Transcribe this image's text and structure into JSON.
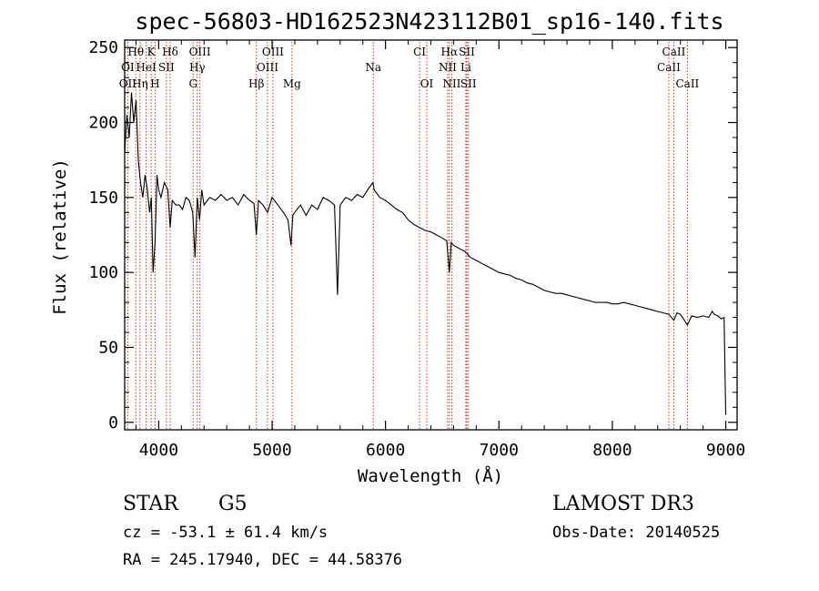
{
  "chart_data": {
    "type": "line",
    "title": "spec-56803-HD162523N423112B01_sp16-140.fits",
    "xlabel": "Wavelength (Å)",
    "ylabel": "Flux (relative)",
    "xlim": [
      3700,
      9100
    ],
    "ylim": [
      -5,
      255
    ],
    "xticks": [
      4000,
      5000,
      6000,
      7000,
      8000,
      9000
    ],
    "yticks": [
      0,
      50,
      100,
      150,
      200,
      250
    ],
    "series": [
      {
        "name": "flux",
        "x": [
          3700,
          3720,
          3740,
          3760,
          3780,
          3800,
          3820,
          3840,
          3860,
          3880,
          3900,
          3920,
          3935,
          3950,
          3968,
          3985,
          4000,
          4020,
          4050,
          4080,
          4101,
          4120,
          4150,
          4180,
          4210,
          4240,
          4270,
          4300,
          4320,
          4340,
          4360,
          4380,
          4400,
          4450,
          4500,
          4550,
          4600,
          4650,
          4700,
          4750,
          4800,
          4840,
          4861,
          4880,
          4920,
          4960,
          5000,
          5050,
          5100,
          5140,
          5167,
          5183,
          5200,
          5250,
          5300,
          5350,
          5400,
          5450,
          5500,
          5550,
          5577,
          5600,
          5650,
          5700,
          5750,
          5800,
          5850,
          5890,
          5900,
          5950,
          6000,
          6050,
          6100,
          6150,
          6200,
          6250,
          6300,
          6350,
          6400,
          6450,
          6500,
          6540,
          6563,
          6580,
          6600,
          6650,
          6700,
          6750,
          6800,
          6850,
          6900,
          6950,
          7000,
          7050,
          7100,
          7150,
          7200,
          7250,
          7300,
          7350,
          7400,
          7450,
          7500,
          7550,
          7600,
          7650,
          7700,
          7750,
          7800,
          7850,
          7900,
          7950,
          8000,
          8050,
          8100,
          8150,
          8200,
          8250,
          8300,
          8350,
          8400,
          8450,
          8500,
          8542,
          8570,
          8600,
          8662,
          8700,
          8750,
          8800,
          8850,
          8880,
          8900,
          8930,
          8960,
          8985,
          9000
        ],
        "y": [
          180,
          205,
          190,
          220,
          200,
          215,
          175,
          160,
          150,
          165,
          155,
          140,
          150,
          100,
          120,
          165,
          155,
          150,
          160,
          155,
          130,
          148,
          145,
          145,
          142,
          150,
          148,
          140,
          110,
          150,
          135,
          155,
          145,
          150,
          148,
          152,
          148,
          150,
          145,
          152,
          148,
          146,
          125,
          148,
          145,
          140,
          150,
          145,
          140,
          135,
          118,
          138,
          140,
          145,
          138,
          145,
          142,
          150,
          148,
          145,
          85,
          145,
          150,
          148,
          152,
          150,
          156,
          160,
          155,
          150,
          148,
          145,
          142,
          140,
          135,
          132,
          130,
          128,
          127,
          125,
          123,
          121,
          100,
          120,
          118,
          116,
          114,
          110,
          108,
          106,
          104,
          102,
          100,
          99,
          98,
          96,
          95,
          93,
          92,
          90,
          88,
          87,
          86,
          86,
          85,
          84,
          83,
          82,
          81,
          80,
          80,
          80,
          79,
          79,
          80,
          79,
          78,
          77,
          76,
          75,
          74,
          73,
          72,
          68,
          73,
          72,
          65,
          71,
          70,
          71,
          70,
          74,
          72,
          71,
          69,
          70,
          5
        ]
      }
    ],
    "line_annotations": [
      {
        "label": "Hθ",
        "x": 3798
      },
      {
        "label": "K",
        "x": 3934
      },
      {
        "label": "Hδ",
        "x": 4101
      },
      {
        "label": "OIII",
        "x": 4363
      },
      {
        "label": "OIII",
        "x": 5007
      },
      {
        "label": "CI",
        "x": 6300
      },
      {
        "label": "Hα",
        "x": 6563
      },
      {
        "label": "SII",
        "x": 6717
      },
      {
        "label": "CaII",
        "x": 8542
      },
      {
        "label": "OI",
        "x": 3727
      },
      {
        "label": "HeI",
        "x": 3889
      },
      {
        "label": "SII",
        "x": 4068
      },
      {
        "label": "Hγ",
        "x": 4340
      },
      {
        "label": "OIII",
        "x": 4959
      },
      {
        "label": "Na",
        "x": 5892
      },
      {
        "label": "NII",
        "x": 6548
      },
      {
        "label": "Li",
        "x": 6708
      },
      {
        "label": "CaII",
        "x": 8498
      },
      {
        "label": "OII",
        "x": 3727
      },
      {
        "label": "Hη",
        "x": 3835
      },
      {
        "label": "H",
        "x": 3968
      },
      {
        "label": "G",
        "x": 4304
      },
      {
        "label": "Hβ",
        "x": 4861
      },
      {
        "label": "Mg",
        "x": 5175
      },
      {
        "label": "OI",
        "x": 6364
      },
      {
        "label": "NII",
        "x": 6584
      },
      {
        "label": "SII",
        "x": 6731
      },
      {
        "label": "CaII",
        "x": 8662
      }
    ]
  },
  "info": {
    "object_class": "STAR",
    "subclass": "G5",
    "survey": "LAMOST DR3",
    "redshift": "cz = -53.1 ± 61.4 km/s",
    "obs_date": "Obs-Date: 20140525",
    "coords": "RA = 245.17940, DEC =  44.58376"
  }
}
